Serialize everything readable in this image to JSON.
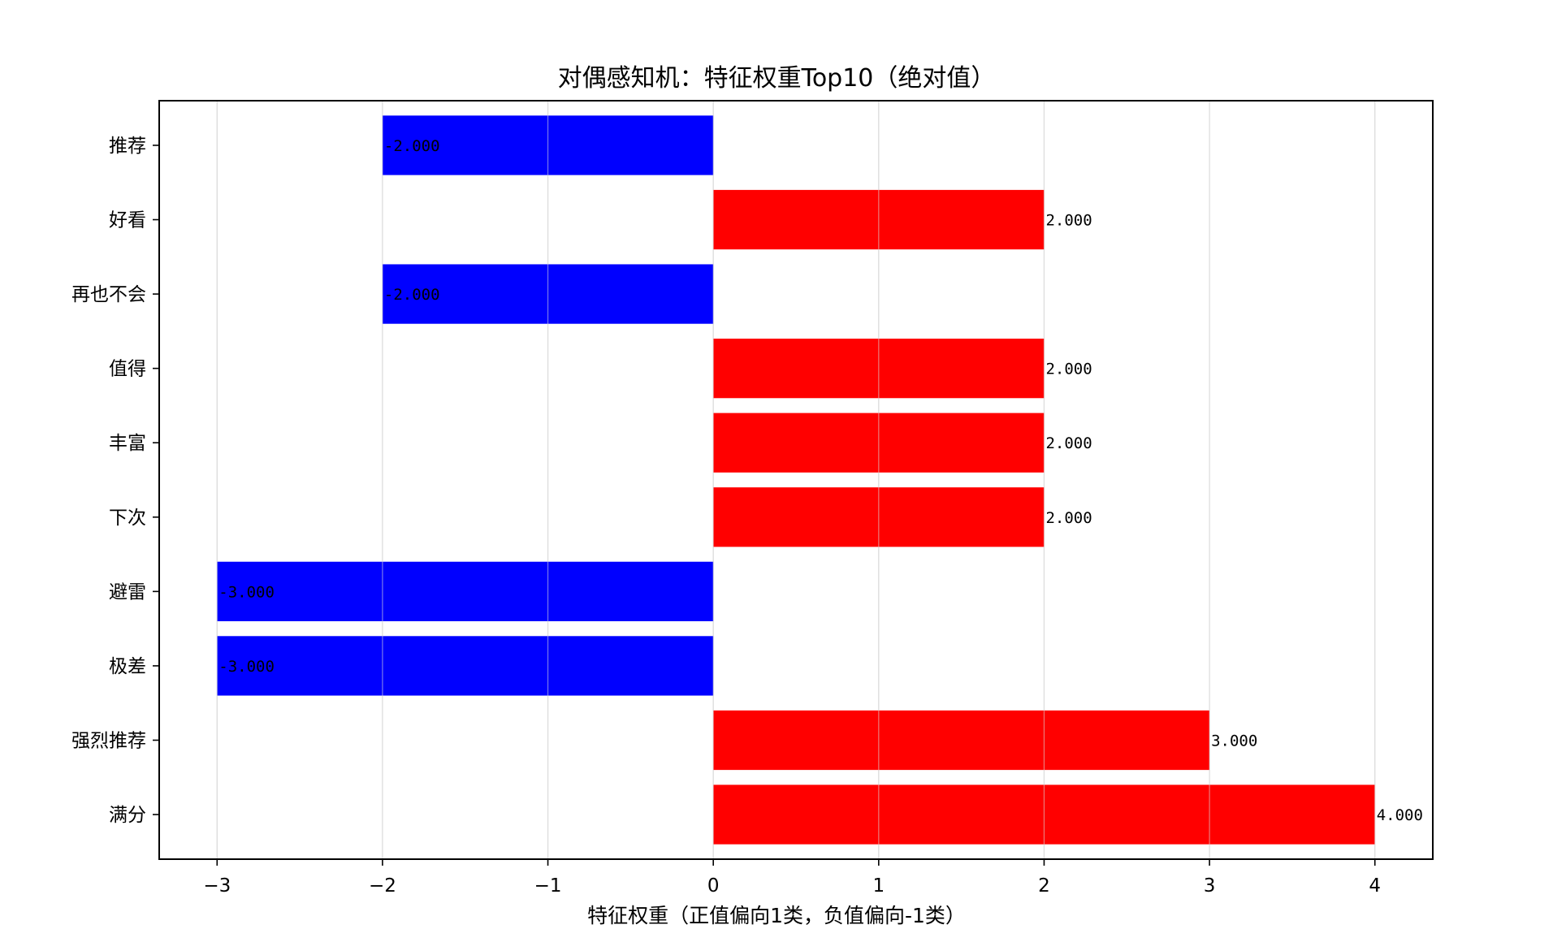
{
  "chart_data": {
    "type": "bar",
    "orientation": "horizontal",
    "title": "对偶感知机：特征权重Top10（绝对值）",
    "xlabel": "特征权重（正值偏向1类，负值偏向-1类）",
    "ylabel": "",
    "categories": [
      "推荐",
      "好看",
      "再也不会",
      "值得",
      "丰富",
      "下次",
      "避雷",
      "极差",
      "强烈推荐",
      "满分"
    ],
    "values": [
      -2,
      2,
      -2,
      2,
      2,
      2,
      -3,
      -3,
      3,
      4
    ],
    "value_labels": [
      "-2.000",
      "2.000",
      "-2.000",
      "2.000",
      "2.000",
      "2.000",
      "-3.000",
      "-3.000",
      "3.000",
      "4.000"
    ],
    "xlim": [
      -3.35,
      4.35
    ],
    "xticks": [
      -3,
      -2,
      -1,
      0,
      1,
      2,
      3,
      4
    ],
    "xtick_labels": [
      "−3",
      "−2",
      "−1",
      "0",
      "1",
      "2",
      "3",
      "4"
    ],
    "grid": "vertical",
    "colors": {
      "positive": "#ff0000",
      "negative": "#0000ff",
      "grid": "#dcdcdc",
      "frame": "#000000"
    }
  }
}
